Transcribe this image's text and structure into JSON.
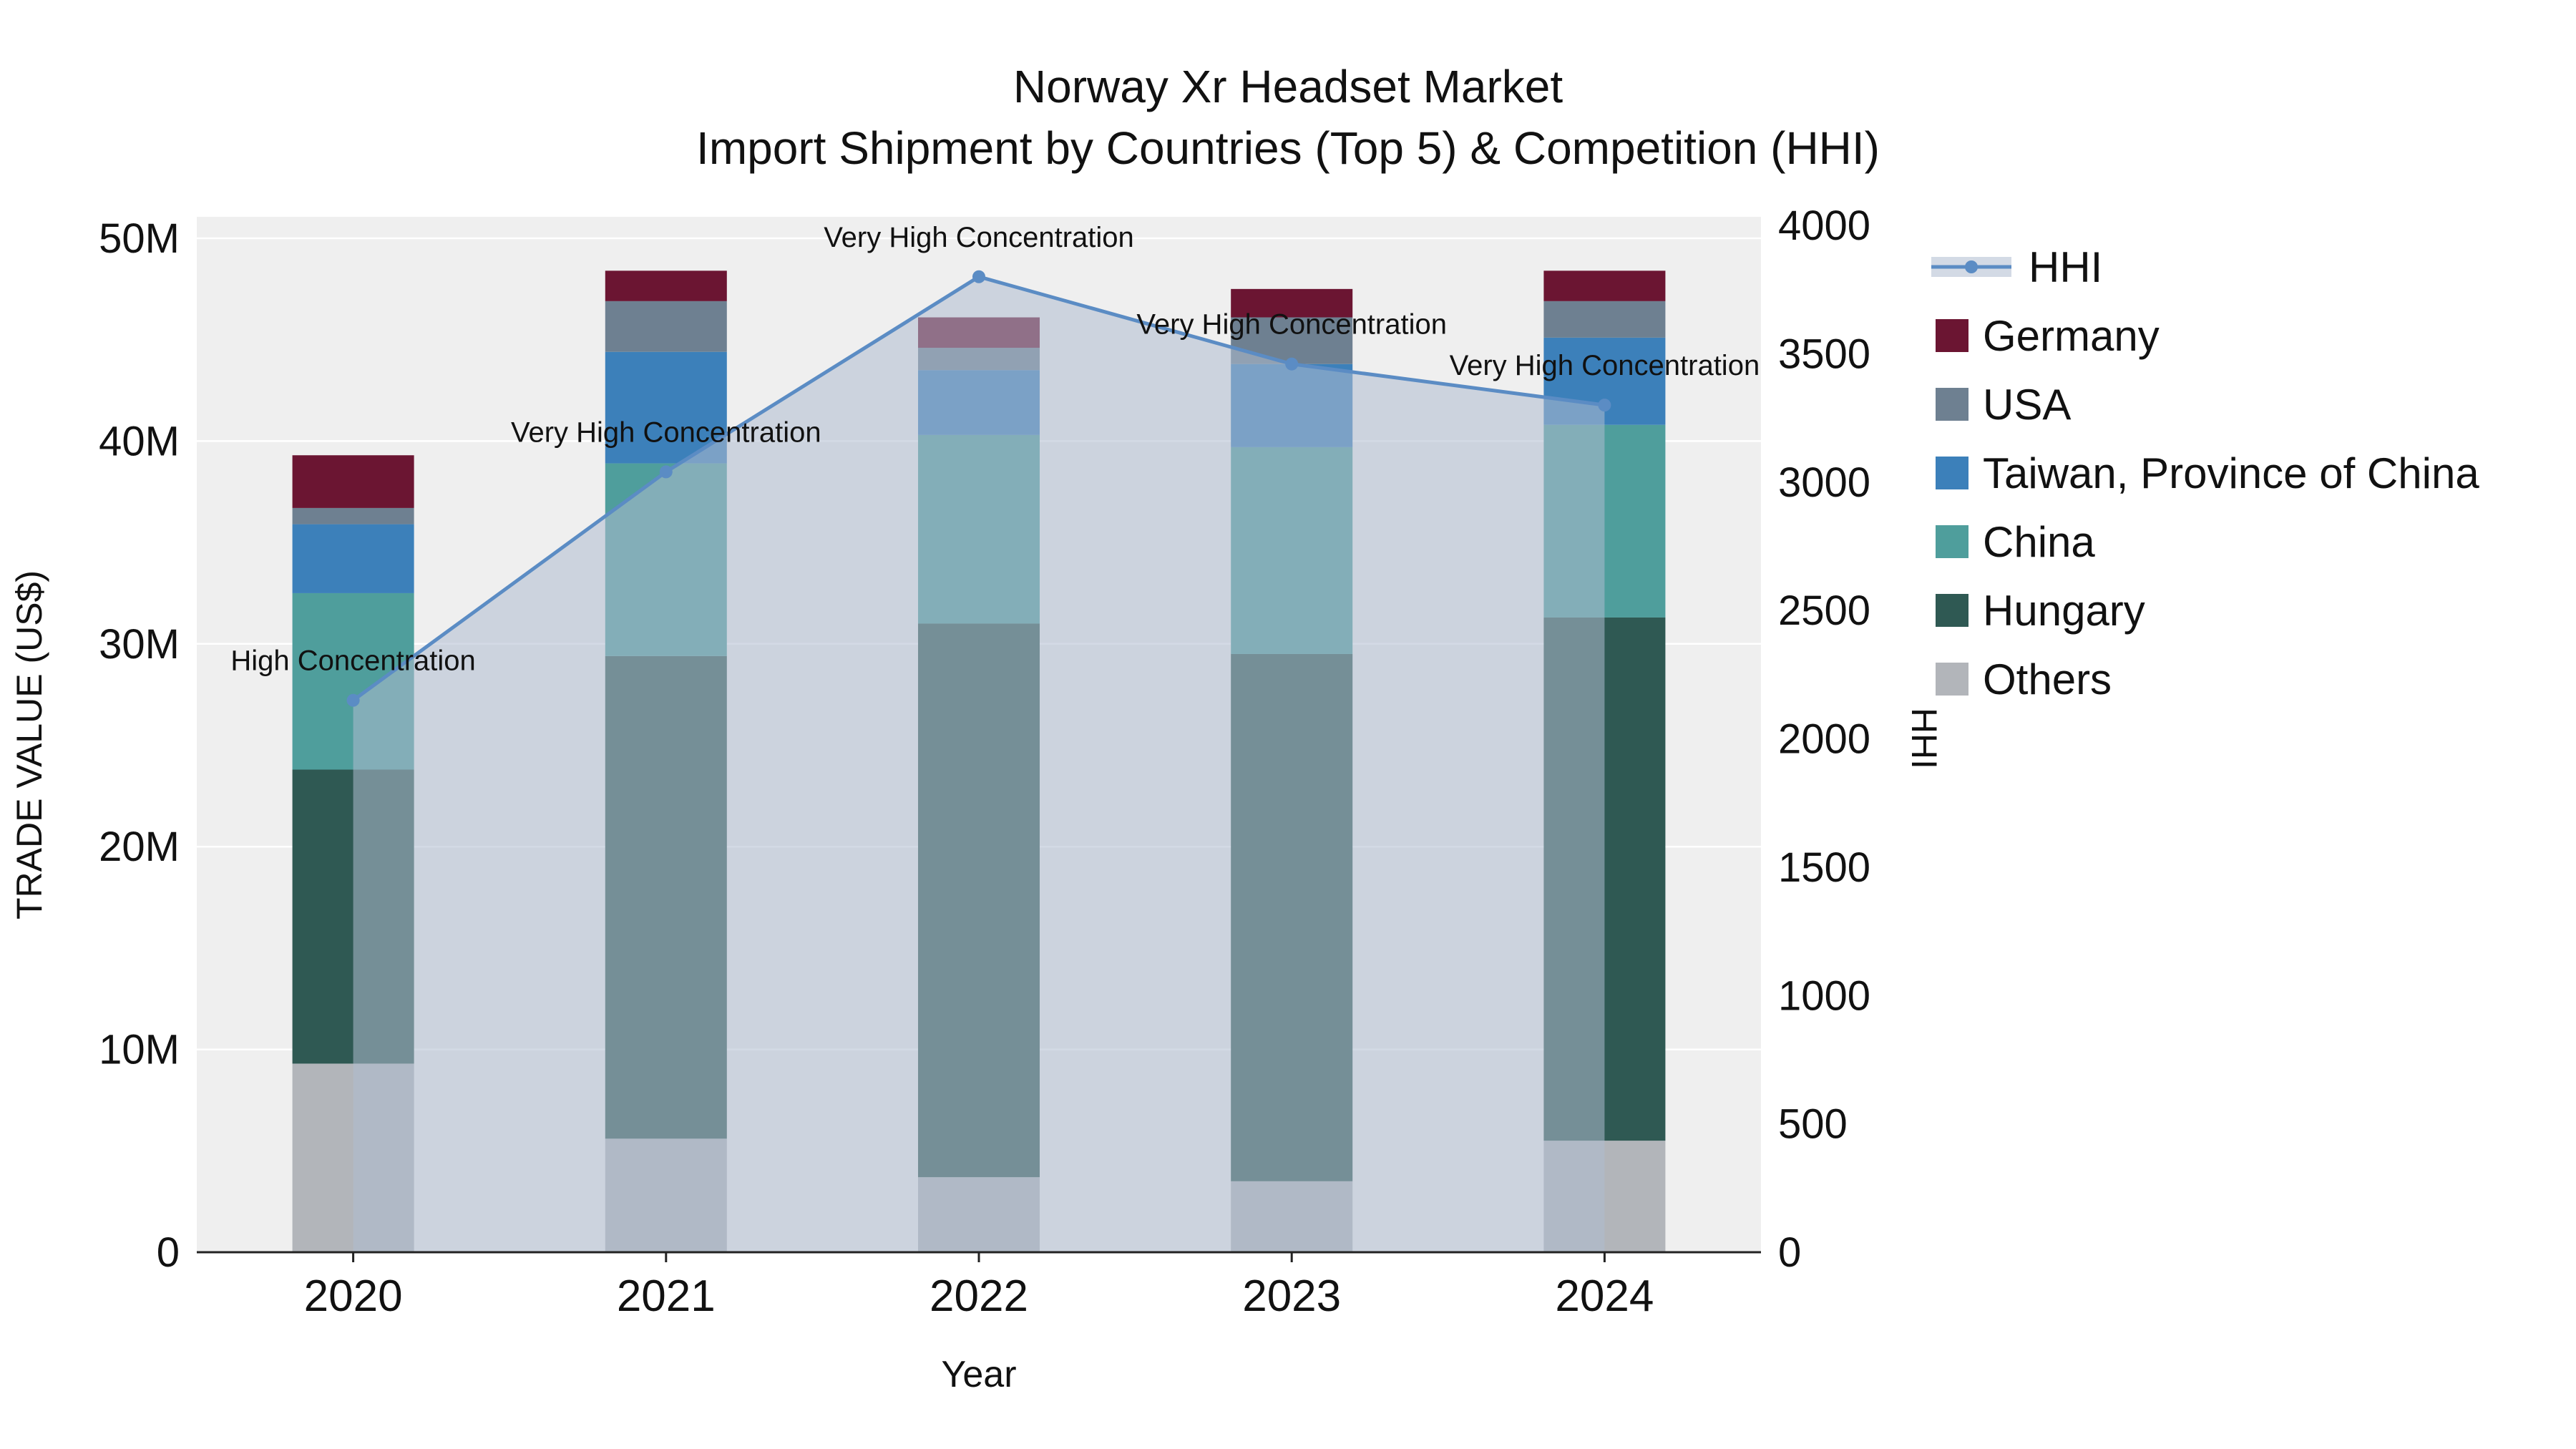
{
  "title": {
    "line1": "Norway Xr Headset Market",
    "line2": "Import Shipment by Countries (Top 5) & Competition (HHI)"
  },
  "chart_data": {
    "type": "bar",
    "subtype": "stacked-bars-with-hhi-line-overlay",
    "categories": [
      "2020",
      "2021",
      "2022",
      "2023",
      "2024"
    ],
    "xlabel": "Year",
    "ylabel_left": "TRADE VALUE (US$)",
    "ylabel_right": "HHI",
    "values_unit": "million USD",
    "plot_bg": "#efefef",
    "series": [
      {
        "name": "Others",
        "values": [
          9.3,
          5.6,
          3.7,
          3.5,
          5.5
        ]
      },
      {
        "name": "Hungary",
        "values": [
          14.5,
          23.8,
          27.3,
          26.0,
          25.8
        ]
      },
      {
        "name": "China",
        "values": [
          8.7,
          9.5,
          9.3,
          10.2,
          9.5
        ]
      },
      {
        "name": "Taiwan, Province of China",
        "values": [
          3.4,
          5.5,
          3.2,
          4.1,
          4.3
        ]
      },
      {
        "name": "USA",
        "values": [
          0.8,
          2.5,
          1.1,
          2.3,
          1.8
        ]
      },
      {
        "name": "Germany",
        "values": [
          2.6,
          1.5,
          1.5,
          1.4,
          1.5
        ]
      }
    ],
    "colors": {
      "Germany": "#6b1532",
      "USA": "#6e8091",
      "Taiwan, Province of China": "#3c80ba",
      "China": "#4f9e9c",
      "Hungary": "#2f5953",
      "Others": "#b2b5ba"
    },
    "hhi_line": {
      "name": "HHI",
      "color": "#5b8cc4",
      "area_fill": "#aebccf",
      "area_opacity": 0.55,
      "values": [
        2150,
        3040,
        3800,
        3460,
        3300
      ],
      "annotations": [
        "High Concentration",
        "Very High Concentration",
        "Very High Concentration",
        "Very High Concentration",
        "Very High Concentration"
      ]
    },
    "y_left": {
      "max": 50,
      "tick_values": [
        0,
        10,
        20,
        30,
        40,
        50
      ],
      "tick_labels": [
        "0",
        "10M",
        "20M",
        "30M",
        "40M",
        "50M"
      ]
    },
    "y_right": {
      "max": 4000,
      "tick_values": [
        0,
        500,
        1000,
        1500,
        2000,
        2500,
        3000,
        3500,
        4000
      ],
      "tick_labels": [
        "0",
        "500",
        "1000",
        "1500",
        "2000",
        "2500",
        "3000",
        "3500",
        "4000"
      ]
    },
    "legend_order": [
      "HHI",
      "Germany",
      "USA",
      "Taiwan, Province of China",
      "China",
      "Hungary",
      "Others"
    ]
  }
}
